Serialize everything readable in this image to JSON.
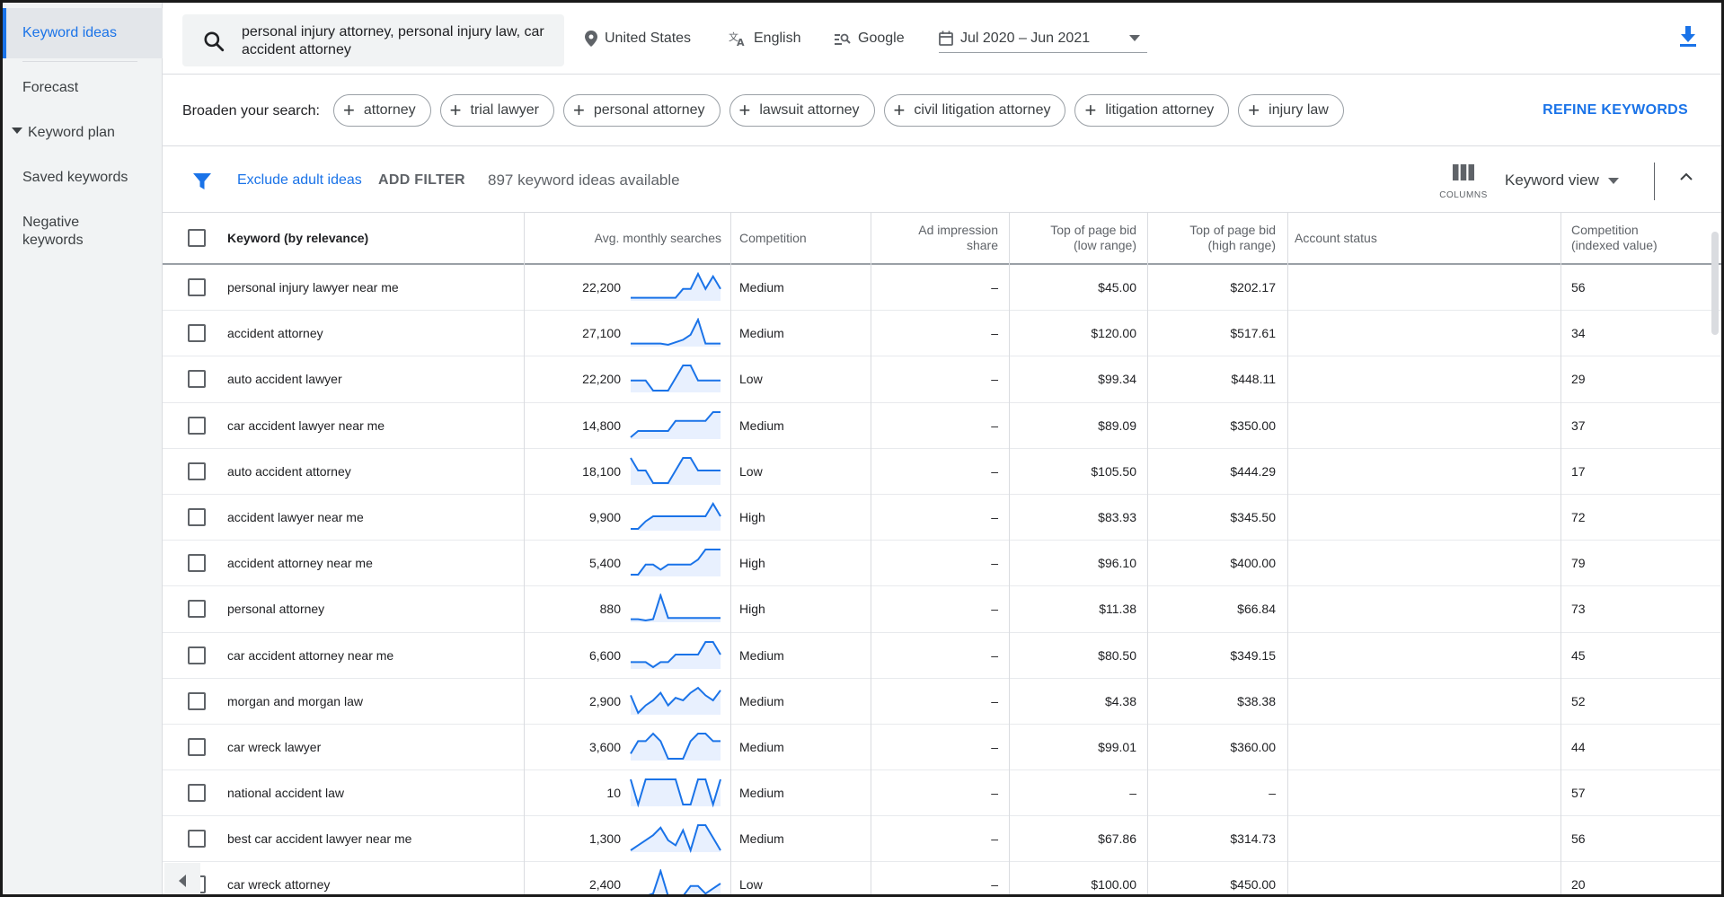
{
  "sidebar": {
    "items": [
      {
        "label": "Keyword ideas",
        "active": true
      },
      {
        "label": "Forecast"
      },
      {
        "label": "Keyword plan"
      },
      {
        "label": "Saved keywords"
      },
      {
        "label": "Negative keywords"
      }
    ]
  },
  "topbar": {
    "search_value": "personal injury attorney, personal injury law, car accident attorney",
    "location": "United States",
    "language": "English",
    "network": "Google",
    "date_range": "Jul 2020 – Jun 2021"
  },
  "broaden": {
    "label": "Broaden your search:",
    "chips": [
      "attorney",
      "trial lawyer",
      "personal attorney",
      "lawsuit attorney",
      "civil litigation attorney",
      "litigation attorney",
      "injury law"
    ],
    "refine_label": "REFINE KEYWORDS"
  },
  "filterbar": {
    "exclude_label": "Exclude adult ideas",
    "add_filter_label": "ADD FILTER",
    "ideas_count": "897 keyword ideas available",
    "columns_label": "COLUMNS",
    "view_label": "Keyword view"
  },
  "table": {
    "headers": {
      "keyword": "Keyword (by relevance)",
      "searches": "Avg. monthly searches",
      "competition": "Competition",
      "ad_share_1": "Ad impression",
      "ad_share_2": "share",
      "low_bid_1": "Top of page bid",
      "low_bid_2": "(low range)",
      "high_bid_1": "Top of page bid",
      "high_bid_2": "(high range)",
      "account": "Account status",
      "comp_idx_1": "Competition",
      "comp_idx_2": "(indexed value)"
    },
    "rows": [
      {
        "keyword": "personal injury lawyer near me",
        "searches": "22,200",
        "competition": "Medium",
        "ad_share": "–",
        "low_bid": "$45.00",
        "high_bid": "$202.17",
        "comp_idx": "56",
        "trend": [
          0.95,
          0.95,
          0.95,
          0.95,
          0.95,
          0.95,
          0.95,
          0.6,
          0.6,
          0.0,
          0.6,
          0.1,
          0.6
        ]
      },
      {
        "keyword": "accident attorney",
        "searches": "27,100",
        "competition": "Medium",
        "ad_share": "–",
        "low_bid": "$120.00",
        "high_bid": "$517.61",
        "comp_idx": "34",
        "trend": [
          0.95,
          0.95,
          0.95,
          0.95,
          0.95,
          1.0,
          0.9,
          0.8,
          0.6,
          0.0,
          0.95,
          0.95,
          0.95
        ]
      },
      {
        "keyword": "auto accident lawyer",
        "searches": "22,200",
        "competition": "Low",
        "ad_share": "–",
        "low_bid": "$99.34",
        "high_bid": "$448.11",
        "comp_idx": "29",
        "trend": [
          0.6,
          0.6,
          0.6,
          1.0,
          1.0,
          1.0,
          0.5,
          0.0,
          0.0,
          0.6,
          0.6,
          0.6,
          0.6
        ]
      },
      {
        "keyword": "car accident lawyer near me",
        "searches": "14,800",
        "competition": "Medium",
        "ad_share": "–",
        "low_bid": "$89.09",
        "high_bid": "$350.00",
        "comp_idx": "37",
        "trend": [
          1.0,
          0.75,
          0.75,
          0.75,
          0.75,
          0.75,
          0.35,
          0.35,
          0.35,
          0.35,
          0.35,
          0.0,
          0.0
        ]
      },
      {
        "keyword": "auto accident attorney",
        "searches": "18,100",
        "competition": "Low",
        "ad_share": "–",
        "low_bid": "$105.50",
        "high_bid": "$444.29",
        "comp_idx": "17",
        "trend": [
          0.0,
          0.5,
          0.5,
          1.0,
          1.0,
          1.0,
          0.5,
          0.0,
          0.0,
          0.5,
          0.5,
          0.5,
          0.5
        ]
      },
      {
        "keyword": "accident lawyer near me",
        "searches": "9,900",
        "competition": "High",
        "ad_share": "–",
        "low_bid": "$83.93",
        "high_bid": "$345.50",
        "comp_idx": "72",
        "trend": [
          1.0,
          1.0,
          0.7,
          0.5,
          0.5,
          0.5,
          0.5,
          0.5,
          0.5,
          0.5,
          0.5,
          0.0,
          0.5
        ]
      },
      {
        "keyword": "accident attorney near me",
        "searches": "5,400",
        "competition": "High",
        "ad_share": "–",
        "low_bid": "$96.10",
        "high_bid": "$400.00",
        "comp_idx": "79",
        "trend": [
          1.0,
          1.0,
          0.6,
          0.6,
          0.8,
          0.6,
          0.6,
          0.6,
          0.6,
          0.4,
          0.0,
          0.0,
          0.0
        ]
      },
      {
        "keyword": "personal attorney",
        "searches": "880",
        "competition": "High",
        "ad_share": "–",
        "low_bid": "$11.38",
        "high_bid": "$66.84",
        "comp_idx": "73",
        "trend": [
          0.95,
          0.95,
          1.0,
          0.95,
          0.0,
          0.9,
          0.9,
          0.9,
          0.9,
          0.9,
          0.9,
          0.9,
          0.9
        ]
      },
      {
        "keyword": "car accident attorney near me",
        "searches": "6,600",
        "competition": "Medium",
        "ad_share": "–",
        "low_bid": "$80.50",
        "high_bid": "$349.15",
        "comp_idx": "45",
        "trend": [
          0.8,
          0.8,
          0.8,
          1.0,
          0.8,
          0.8,
          0.5,
          0.5,
          0.5,
          0.5,
          0.0,
          0.0,
          0.5
        ]
      },
      {
        "keyword": "morgan and morgan law",
        "searches": "2,900",
        "competition": "Medium",
        "ad_share": "–",
        "low_bid": "$4.38",
        "high_bid": "$38.38",
        "comp_idx": "52",
        "trend": [
          0.3,
          1.0,
          0.7,
          0.5,
          0.2,
          0.7,
          0.4,
          0.5,
          0.2,
          0.0,
          0.3,
          0.5,
          0.1
        ]
      },
      {
        "keyword": "car wreck lawyer",
        "searches": "3,600",
        "competition": "Medium",
        "ad_share": "–",
        "low_bid": "$99.01",
        "high_bid": "$360.00",
        "comp_idx": "44",
        "trend": [
          0.8,
          0.3,
          0.3,
          0.0,
          0.3,
          1.0,
          1.0,
          1.0,
          0.3,
          0.0,
          0.0,
          0.3,
          0.3
        ]
      },
      {
        "keyword": "national accident law",
        "searches": "10",
        "competition": "Medium",
        "ad_share": "–",
        "low_bid": "–",
        "high_bid": "–",
        "comp_idx": "57",
        "trend": [
          0.0,
          1.0,
          0.0,
          0.0,
          0.0,
          0.0,
          0.0,
          1.0,
          1.0,
          0.0,
          0.0,
          1.0,
          0.0
        ]
      },
      {
        "keyword": "best car accident lawyer near me",
        "searches": "1,300",
        "competition": "Medium",
        "ad_share": "–",
        "low_bid": "$67.86",
        "high_bid": "$314.73",
        "comp_idx": "56",
        "trend": [
          1.0,
          0.8,
          0.6,
          0.4,
          0.1,
          0.6,
          0.8,
          0.2,
          1.0,
          0.0,
          0.0,
          0.5,
          1.0
        ]
      },
      {
        "keyword": "car wreck attorney",
        "searches": "2,400",
        "competition": "Low",
        "ad_share": "–",
        "low_bid": "$100.00",
        "high_bid": "$450.00",
        "comp_idx": "20",
        "trend": [
          1.0,
          1.0,
          1.0,
          0.9,
          0.0,
          1.0,
          1.0,
          1.0,
          0.6,
          0.6,
          0.9,
          0.7,
          0.5
        ]
      }
    ]
  }
}
